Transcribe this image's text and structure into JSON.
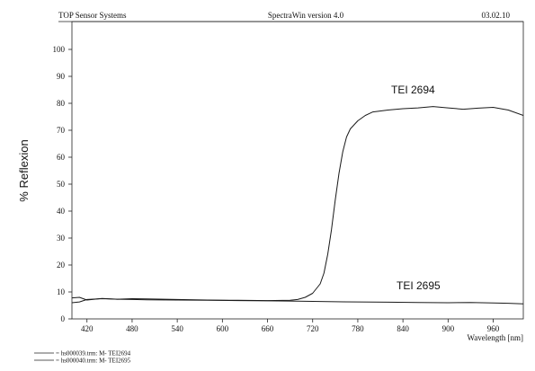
{
  "header": {
    "left": "TOP Sensor Systems",
    "center": "SpectraWin version 4.0",
    "right": "03.02.10"
  },
  "chart_data": {
    "type": "line",
    "ylabel": "% Reflexion",
    "xlabel": "Wavelength [nm]",
    "xlim": [
      400,
      1000
    ],
    "ylim": [
      0,
      100
    ],
    "xticks": [
      420,
      480,
      540,
      600,
      660,
      720,
      780,
      840,
      900,
      960
    ],
    "yticks": [
      0,
      10,
      20,
      30,
      40,
      50,
      60,
      70,
      80,
      90,
      100
    ],
    "grid": false,
    "series": [
      {
        "name": "TEI 2694",
        "x": [
          400,
          410,
          420,
          440,
          460,
          480,
          500,
          540,
          580,
          620,
          660,
          690,
          700,
          710,
          720,
          730,
          735,
          740,
          745,
          750,
          755,
          760,
          765,
          770,
          780,
          790,
          800,
          820,
          840,
          860,
          880,
          900,
          920,
          940,
          960,
          980,
          1000
        ],
        "values": [
          7.8,
          8.0,
          7.0,
          7.6,
          7.3,
          7.5,
          7.4,
          7.2,
          7.0,
          6.9,
          6.8,
          6.9,
          7.2,
          8.0,
          9.5,
          13.0,
          17.0,
          24.0,
          33.0,
          44.0,
          54.0,
          62.0,
          67.5,
          70.5,
          73.5,
          75.5,
          76.8,
          77.5,
          78.0,
          78.3,
          78.8,
          78.3,
          77.8,
          78.2,
          78.5,
          77.5,
          75.5
        ]
      },
      {
        "name": "TEI 2695",
        "x": [
          400,
          410,
          420,
          440,
          460,
          480,
          500,
          540,
          580,
          620,
          660,
          700,
          740,
          780,
          820,
          860,
          900,
          930,
          960,
          980,
          1000
        ],
        "values": [
          6.0,
          6.3,
          7.2,
          7.5,
          7.3,
          7.2,
          7.1,
          7.0,
          6.9,
          6.8,
          6.7,
          6.6,
          6.4,
          6.3,
          6.2,
          6.1,
          6.0,
          6.1,
          5.9,
          5.8,
          5.6
        ]
      }
    ],
    "annotations": [
      "TEI 2694",
      "TEI 2695"
    ],
    "legend": {
      "position": "bottom-left",
      "entries": [
        "= hs000039.trm:  M- TEI2694",
        "= hs000040.trm:  M- TEI2695"
      ]
    }
  }
}
